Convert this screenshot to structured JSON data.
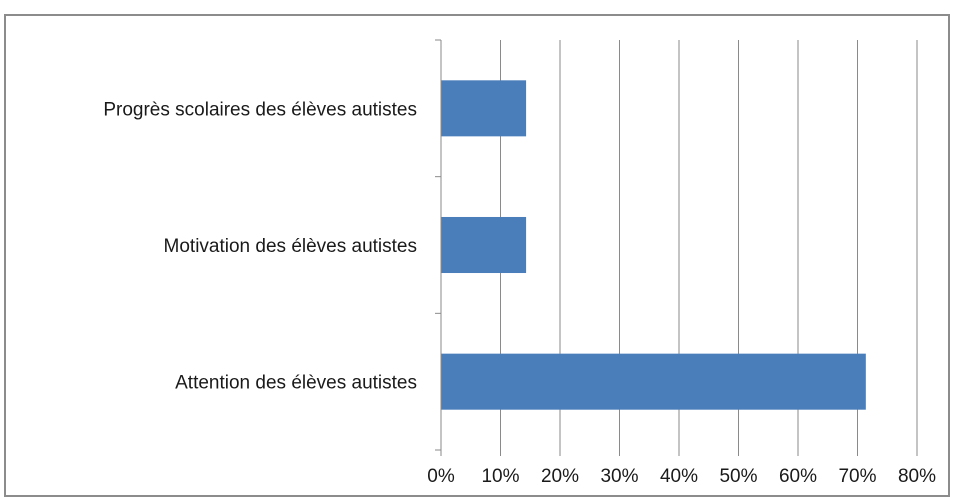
{
  "chart_data": {
    "type": "bar",
    "orientation": "horizontal",
    "categories": [
      "Progrès scolaires des élèves autistes",
      "Motivation des élèves autistes",
      "Attention des élèves autistes"
    ],
    "values": [
      0.143,
      0.143,
      0.714
    ],
    "xlim": [
      0,
      0.8
    ],
    "x_ticks": [
      "0%",
      "10%",
      "20%",
      "30%",
      "40%",
      "50%",
      "60%",
      "70%",
      "80%"
    ],
    "bar_color": "#4a7ebb",
    "grid": "vertical gridlines",
    "legend": "none"
  }
}
